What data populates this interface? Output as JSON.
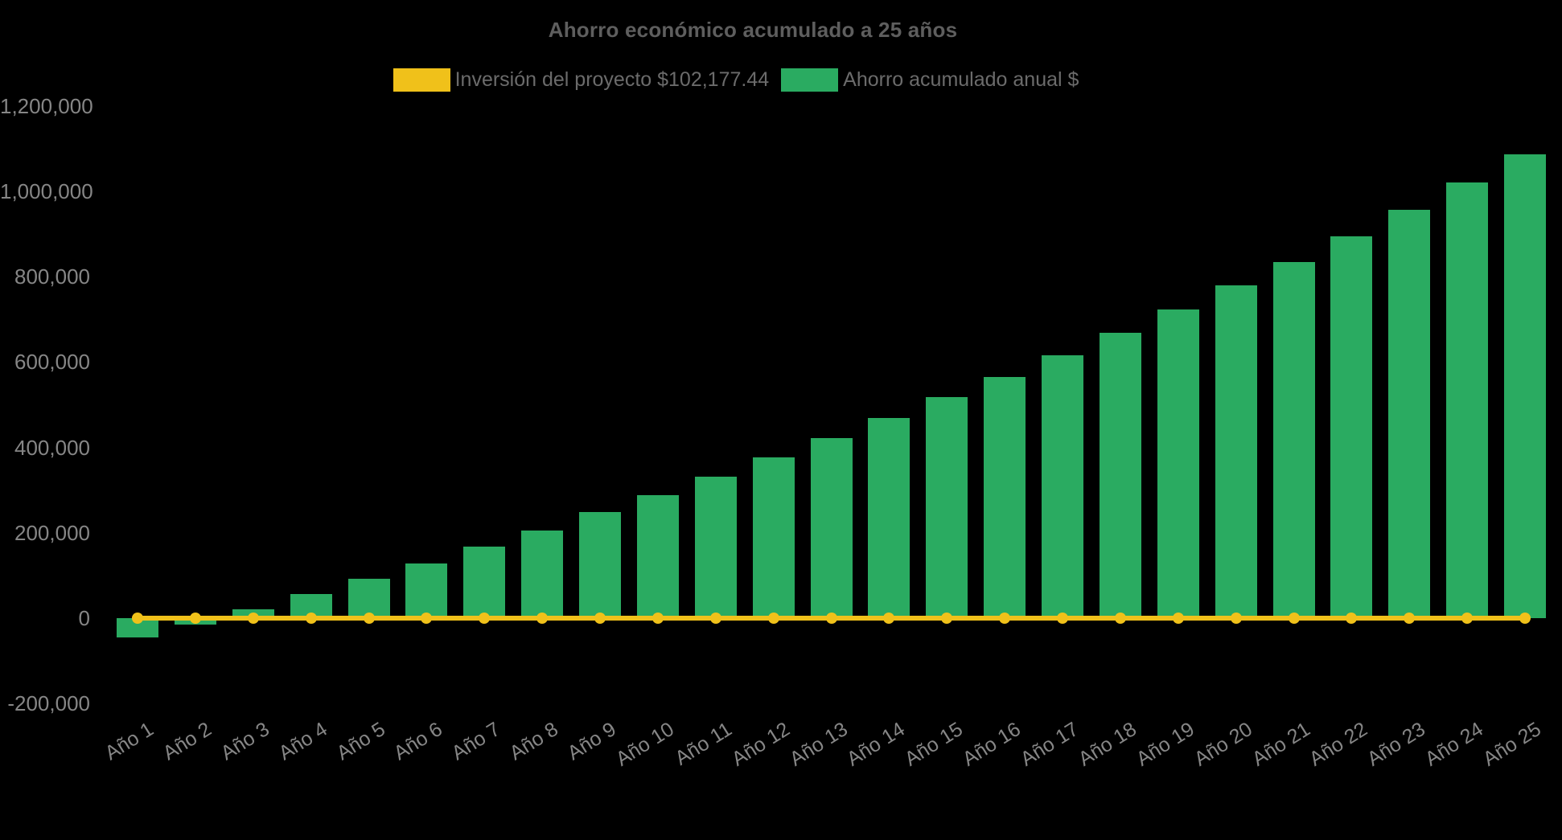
{
  "title": "Ahorro económico acumulado a 25 años",
  "colors": {
    "background": "#000000",
    "bar_green": "#2AAB61",
    "line_yellow": "#F0C11A",
    "title_text": "#5e5e5e",
    "legend_text": "#6b6b6b",
    "axis_text": "#868686"
  },
  "legend": {
    "items": [
      {
        "label": "Inversión del proyecto $102,177.44",
        "color": "#F0C11A",
        "swatch": "rect"
      },
      {
        "label": "Ahorro acumulado anual $",
        "color": "#2AAB61",
        "swatch": "rect"
      }
    ]
  },
  "chart_data": {
    "type": "bar",
    "title": "Ahorro económico acumulado a 25 años",
    "categories": [
      "Año 1",
      "Año 2",
      "Año 3",
      "Año 4",
      "Año 5",
      "Año 6",
      "Año 7",
      "Año 8",
      "Año 9",
      "Año 10",
      "Año 11",
      "Año 12",
      "Año 13",
      "Año 14",
      "Año 15",
      "Año 16",
      "Año 17",
      "Año 18",
      "Año 19",
      "Año 20",
      "Año 21",
      "Año 22",
      "Año 23",
      "Año 24",
      "Año 25"
    ],
    "series": [
      {
        "name": "Ahorro acumulado anual $",
        "type": "bar",
        "color": "#2AAB61",
        "values_estimated": true,
        "values": [
          -45000,
          -15000,
          21000,
          56000,
          92000,
          129000,
          167000,
          206000,
          249000,
          289000,
          332000,
          376000,
          421000,
          468000,
          517000,
          565000,
          615000,
          668000,
          724000,
          779000,
          835000,
          895000,
          956000,
          1020000,
          1086000
        ]
      },
      {
        "name": "Inversión del proyecto $102,177.44",
        "type": "line",
        "color": "#F0C11A",
        "marker": "circle",
        "investment_value": 102177.44,
        "rendered_at_value": 0
      }
    ],
    "ylim": [
      -200000,
      1200000
    ],
    "yticks": [
      {
        "value": 1200000,
        "label": "1,200,000"
      },
      {
        "value": 1000000,
        "label": "1,000,000"
      },
      {
        "value": 800000,
        "label": "800,000"
      },
      {
        "value": 600000,
        "label": "600,000"
      },
      {
        "value": 400000,
        "label": "400,000"
      },
      {
        "value": 200000,
        "label": "200,000"
      },
      {
        "value": 0,
        "label": "0"
      },
      {
        "value": -200000,
        "label": "-200,000"
      }
    ],
    "grid": false,
    "legend_position": "top-center",
    "x_label_rotation_deg": -32,
    "background": "#000000"
  }
}
